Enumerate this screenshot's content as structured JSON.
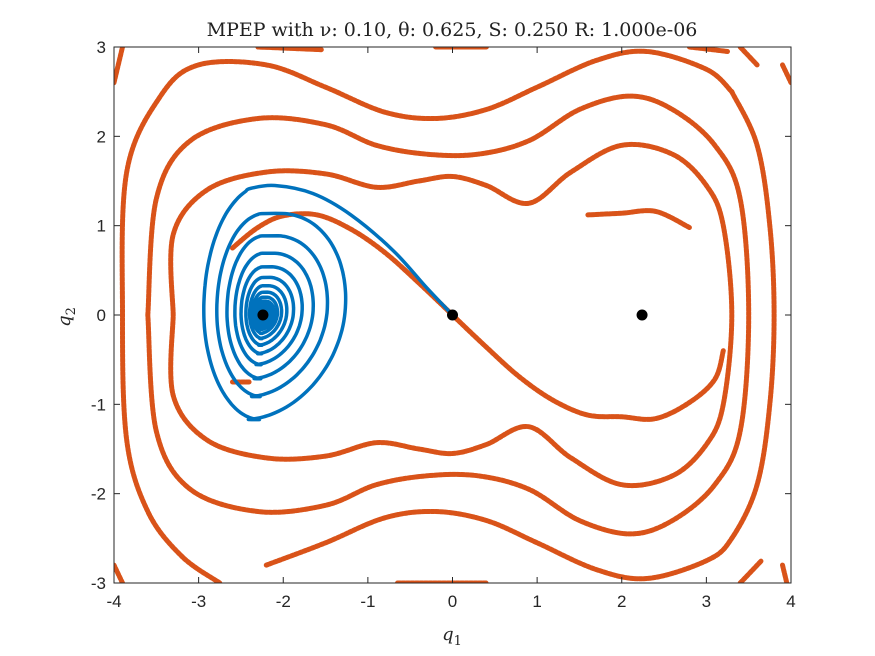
{
  "chart_data": {
    "type": "line",
    "title": "MPEP with ν: 0.10, θ: 0.625, S: 0.250 R: 1.000e-06",
    "xlabel": "q",
    "xlabel_sub": "1",
    "ylabel": "q",
    "ylabel_sub": "2",
    "xlim": [
      -4,
      4
    ],
    "ylim": [
      -3,
      3
    ],
    "x_ticks": [
      -4,
      -3,
      -2,
      -1,
      0,
      1,
      2,
      3,
      4
    ],
    "y_ticks": [
      -3,
      -2,
      -1,
      0,
      1,
      2,
      3
    ],
    "x_tick_labels": [
      "-4",
      "-3",
      "-2",
      "-1",
      "0",
      "1",
      "2",
      "3",
      "4"
    ],
    "y_tick_labels": [
      "-3",
      "-2",
      "-1",
      "0",
      "1",
      "2",
      "3"
    ],
    "grid": false,
    "legend": "none",
    "colors": {
      "spiral": "#0072BD",
      "contour": "#D95319",
      "point": "#000000",
      "axis": "#262626"
    },
    "points": [
      {
        "x": -2.24,
        "y": 0
      },
      {
        "x": 0,
        "y": 0
      },
      {
        "x": 2.24,
        "y": 0
      }
    ],
    "spiral": {
      "center": [
        -2.24,
        0
      ],
      "outer_start": [
        0,
        0
      ],
      "outer_top": [
        -2.1,
        1.45
      ],
      "outer_left": [
        -2.98,
        0
      ],
      "outer_bottom": [
        -2.2,
        -1.32
      ],
      "outer_right": [
        -1.08,
        0
      ]
    },
    "contours": [
      {
        "level": "separatrix",
        "upper": [
          [
            -2.6,
            0.75
          ],
          [
            -2.3,
            0.98
          ],
          [
            -2.0,
            1.11
          ],
          [
            -1.6,
            1.12
          ],
          [
            -1.2,
            0.96
          ],
          [
            -0.8,
            0.7
          ],
          [
            -0.4,
            0.36
          ],
          [
            0,
            0
          ]
        ],
        "lower": [
          [
            0,
            0
          ],
          [
            0.4,
            -0.36
          ],
          [
            0.8,
            -0.7
          ],
          [
            1.2,
            -0.96
          ],
          [
            1.6,
            -1.12
          ],
          [
            2.0,
            -1.14
          ],
          [
            2.4,
            -1.16
          ],
          [
            2.8,
            -0.98
          ],
          [
            3.1,
            -0.72
          ],
          [
            3.2,
            -0.4
          ]
        ],
        "right_upper": [
          [
            2.8,
            0.98
          ],
          [
            2.4,
            1.16
          ],
          [
            2.0,
            1.14
          ],
          [
            1.6,
            1.12
          ]
        ],
        "left_bottom": [
          [
            -2.6,
            -0.75
          ],
          [
            -2.4,
            -0.75
          ]
        ]
      },
      {
        "level": "inner",
        "path": [
          [
            -3.3,
            0
          ],
          [
            -3.3,
            0.9
          ],
          [
            -2.9,
            1.4
          ],
          [
            -2.2,
            1.6
          ],
          [
            -1.5,
            1.58
          ],
          [
            -0.9,
            1.43
          ],
          [
            -0.4,
            1.5
          ],
          [
            0,
            1.55
          ],
          [
            0.4,
            1.45
          ],
          [
            0.9,
            1.25
          ],
          [
            1.4,
            1.6
          ],
          [
            2.0,
            1.9
          ],
          [
            2.6,
            1.8
          ],
          [
            3.0,
            1.45
          ],
          [
            3.2,
            1.0
          ],
          [
            3.3,
            0
          ],
          [
            3.2,
            -1.0
          ],
          [
            3.0,
            -1.45
          ],
          [
            2.6,
            -1.8
          ],
          [
            2.0,
            -1.9
          ],
          [
            1.4,
            -1.6
          ],
          [
            0.9,
            -1.25
          ],
          [
            0.4,
            -1.45
          ],
          [
            0,
            -1.55
          ],
          [
            -0.4,
            -1.5
          ],
          [
            -0.9,
            -1.43
          ],
          [
            -1.5,
            -1.58
          ],
          [
            -2.2,
            -1.6
          ],
          [
            -2.9,
            -1.4
          ],
          [
            -3.3,
            -0.9
          ],
          [
            -3.3,
            0
          ]
        ]
      },
      {
        "level": "middle",
        "path": [
          [
            -3.6,
            0
          ],
          [
            -3.5,
            1.3
          ],
          [
            -3.1,
            1.95
          ],
          [
            -2.3,
            2.2
          ],
          [
            -1.5,
            2.13
          ],
          [
            -0.9,
            1.9
          ],
          [
            -0.3,
            1.8
          ],
          [
            0.3,
            1.8
          ],
          [
            0.9,
            1.95
          ],
          [
            1.5,
            2.3
          ],
          [
            2.1,
            2.45
          ],
          [
            2.6,
            2.3
          ],
          [
            3.1,
            1.9
          ],
          [
            3.4,
            1.3
          ],
          [
            3.5,
            0
          ],
          [
            3.4,
            -1.3
          ],
          [
            3.1,
            -1.9
          ],
          [
            2.6,
            -2.3
          ],
          [
            2.1,
            -2.45
          ],
          [
            1.5,
            -2.3
          ],
          [
            0.9,
            -1.95
          ],
          [
            0.3,
            -1.8
          ],
          [
            -0.3,
            -1.8
          ],
          [
            -0.9,
            -1.9
          ],
          [
            -1.5,
            -2.13
          ],
          [
            -2.3,
            -2.2
          ],
          [
            -3.1,
            -1.95
          ],
          [
            -3.5,
            -1.3
          ],
          [
            -3.6,
            0
          ]
        ]
      },
      {
        "level": "outer-left",
        "path": [
          [
            -2.75,
            -3
          ],
          [
            -3.2,
            -2.7
          ],
          [
            -3.6,
            -2.2
          ],
          [
            -3.85,
            -1.4
          ],
          [
            -3.9,
            0
          ],
          [
            -3.85,
            1.6
          ],
          [
            -3.45,
            2.45
          ],
          [
            -3.0,
            2.8
          ],
          [
            -2.2,
            2.8
          ],
          [
            -1.5,
            2.55
          ],
          [
            -0.8,
            2.27
          ],
          [
            -0.2,
            2.2
          ],
          [
            0.4,
            2.3
          ],
          [
            1.0,
            2.55
          ],
          [
            1.7,
            2.85
          ],
          [
            2.3,
            2.95
          ],
          [
            3.0,
            2.75
          ],
          [
            3.3,
            2.5
          ]
        ]
      },
      {
        "level": "outer-right",
        "path": [
          [
            3.3,
            2.5
          ],
          [
            3.6,
            1.9
          ],
          [
            3.75,
            1.0
          ],
          [
            3.8,
            0
          ],
          [
            3.75,
            -1.0
          ],
          [
            3.6,
            -1.9
          ],
          [
            3.3,
            -2.5
          ],
          [
            3.0,
            -2.75
          ],
          [
            2.3,
            -2.95
          ],
          [
            1.7,
            -2.85
          ],
          [
            1.0,
            -2.55
          ],
          [
            0.4,
            -2.3
          ],
          [
            -0.2,
            -2.2
          ],
          [
            -0.8,
            -2.27
          ],
          [
            -1.5,
            -2.55
          ],
          [
            -2.2,
            -2.8
          ]
        ]
      },
      {
        "level": "corner-segments",
        "segments": [
          [
            [
              -3.9,
              -3.0
            ],
            [
              -4.0,
              -2.8
            ]
          ],
          [
            [
              -4.0,
              2.6
            ],
            [
              -3.9,
              3.0
            ]
          ],
          [
            [
              -1.55,
              2.97
            ],
            [
              -2.3,
              3.0
            ]
          ],
          [
            [
              0.4,
              3.0
            ],
            [
              -0.2,
              3.0
            ]
          ],
          [
            [
              2.8,
              3.0
            ],
            [
              3.25,
              2.95
            ]
          ],
          [
            [
              3.4,
              3.0
            ],
            [
              3.6,
              2.8
            ]
          ],
          [
            [
              -0.65,
              -3.0
            ],
            [
              0.4,
              -3.0
            ]
          ],
          [
            [
              3.4,
              -3.0
            ],
            [
              3.65,
              -2.75
            ]
          ],
          [
            [
              3.9,
              -2.8
            ],
            [
              3.95,
              -3.0
            ]
          ],
          [
            [
              3.9,
              2.8
            ],
            [
              4.0,
              2.6
            ]
          ]
        ]
      }
    ]
  }
}
